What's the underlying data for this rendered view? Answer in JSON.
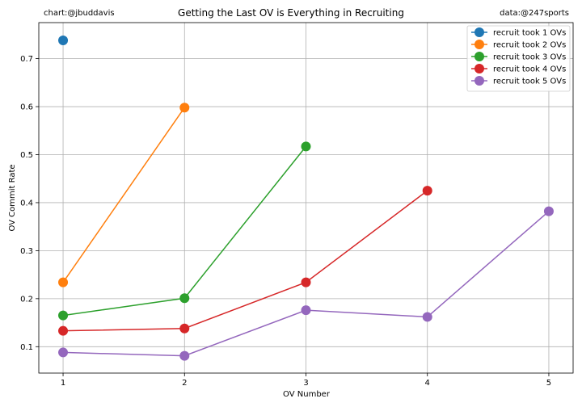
{
  "credits": {
    "left": "chart:@jbuddavis",
    "right": "data:@247sports"
  },
  "chart_data": {
    "type": "line",
    "title": "Getting the Last OV is Everything in Recruiting",
    "xlabel": "OV Number",
    "ylabel": "OV Commit Rate",
    "xlim": [
      0.8,
      5.2
    ],
    "ylim": [
      0.045,
      0.775
    ],
    "x_ticks": [
      1,
      2,
      3,
      4,
      5
    ],
    "y_ticks": [
      0.1,
      0.2,
      0.3,
      0.4,
      0.5,
      0.6,
      0.7
    ],
    "grid": true,
    "legend_position": "top-right",
    "series": [
      {
        "name": "recruit took 1 OVs",
        "color": "#1f77b4",
        "x": [
          1
        ],
        "y": [
          0.738
        ]
      },
      {
        "name": "recruit took 2 OVs",
        "color": "#ff7f0e",
        "x": [
          1,
          2
        ],
        "y": [
          0.234,
          0.598
        ]
      },
      {
        "name": "recruit took 3 OVs",
        "color": "#2ca02c",
        "x": [
          1,
          2,
          3
        ],
        "y": [
          0.165,
          0.201,
          0.517
        ]
      },
      {
        "name": "recruit took 4 OVs",
        "color": "#d62728",
        "x": [
          1,
          2,
          3,
          4
        ],
        "y": [
          0.133,
          0.138,
          0.234,
          0.425
        ]
      },
      {
        "name": "recruit took 5 OVs",
        "color": "#9467bd",
        "x": [
          1,
          2,
          3,
          4,
          5
        ],
        "y": [
          0.088,
          0.081,
          0.176,
          0.162,
          0.382
        ]
      }
    ]
  }
}
